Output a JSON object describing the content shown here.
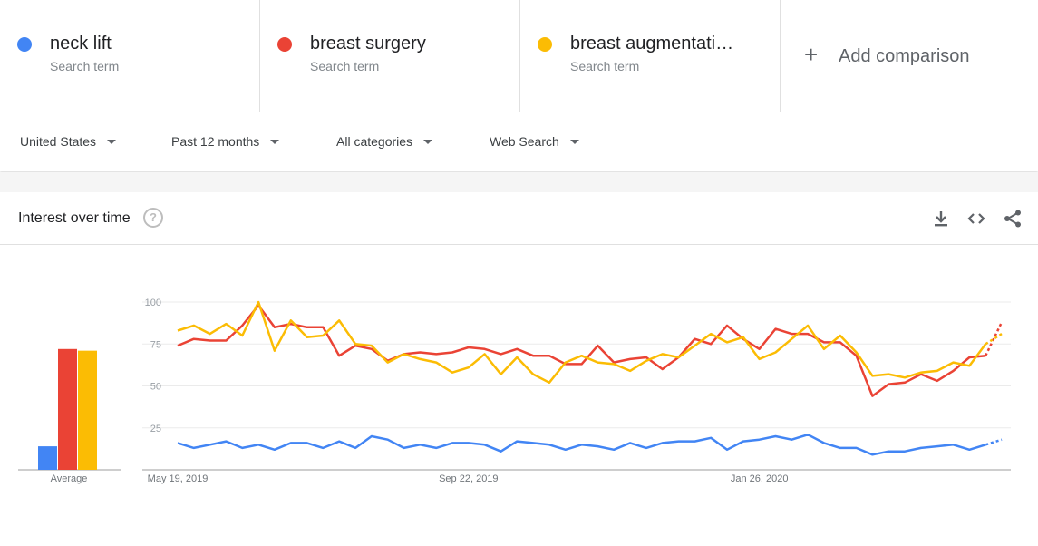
{
  "terms": [
    {
      "name": "neck lift",
      "sub": "Search term",
      "color": "#4285f4"
    },
    {
      "name": "breast surgery",
      "sub": "Search term",
      "color": "#ea4335"
    },
    {
      "name": "breast augmentati…",
      "sub": "Search term",
      "color": "#fbbc04"
    }
  ],
  "add_comparison": {
    "icon": "plus-icon",
    "label": "Add comparison"
  },
  "filters": {
    "region": "United States",
    "time": "Past 12 months",
    "category": "All categories",
    "search_type": "Web Search"
  },
  "card": {
    "title": "Interest over time",
    "help_glyph": "?",
    "icons": [
      "download-icon",
      "embed-code-icon",
      "share-icon"
    ]
  },
  "chart_data": {
    "type": "line",
    "ylim": [
      0,
      100
    ],
    "yticks": [
      "25",
      "50",
      "75",
      "100"
    ],
    "xtick_labels": [
      {
        "index": 0,
        "label": "May 19, 2019"
      },
      {
        "index": 18,
        "label": "Sep 22, 2019"
      },
      {
        "index": 36,
        "label": "Jan 26, 2020"
      }
    ],
    "average": {
      "label": "Average",
      "values": [
        14,
        72,
        71
      ]
    },
    "series": [
      {
        "color": "#4285f4",
        "values": [
          16,
          13,
          15,
          17,
          13,
          15,
          12,
          16,
          16,
          13,
          17,
          13,
          20,
          18,
          13,
          15,
          13,
          16,
          16,
          15,
          11,
          17,
          16,
          15,
          12,
          15,
          14,
          12,
          16,
          13,
          16,
          17,
          17,
          19,
          12,
          17,
          18,
          20,
          18,
          21,
          16,
          13,
          13,
          9,
          11,
          11,
          13,
          14,
          15,
          12,
          15,
          18
        ]
      },
      {
        "color": "#ea4335",
        "values": [
          74,
          78,
          77,
          77,
          86,
          98,
          85,
          87,
          85,
          85,
          68,
          74,
          72,
          65,
          69,
          70,
          69,
          70,
          73,
          72,
          69,
          72,
          68,
          68,
          63,
          63,
          74,
          64,
          66,
          67,
          60,
          67,
          78,
          75,
          86,
          78,
          72,
          84,
          81,
          81,
          76,
          76,
          68,
          44,
          51,
          52,
          57,
          53,
          59,
          67,
          68,
          88
        ]
      },
      {
        "color": "#fbbc04",
        "values": [
          83,
          86,
          81,
          87,
          80,
          100,
          71,
          89,
          79,
          80,
          89,
          75,
          74,
          64,
          69,
          66,
          64,
          58,
          61,
          69,
          57,
          67,
          57,
          52,
          64,
          68,
          64,
          63,
          59,
          65,
          69,
          67,
          74,
          81,
          76,
          79,
          66,
          70,
          78,
          86,
          72,
          80,
          70,
          56,
          57,
          55,
          58,
          59,
          64,
          62,
          75,
          81
        ]
      }
    ]
  }
}
